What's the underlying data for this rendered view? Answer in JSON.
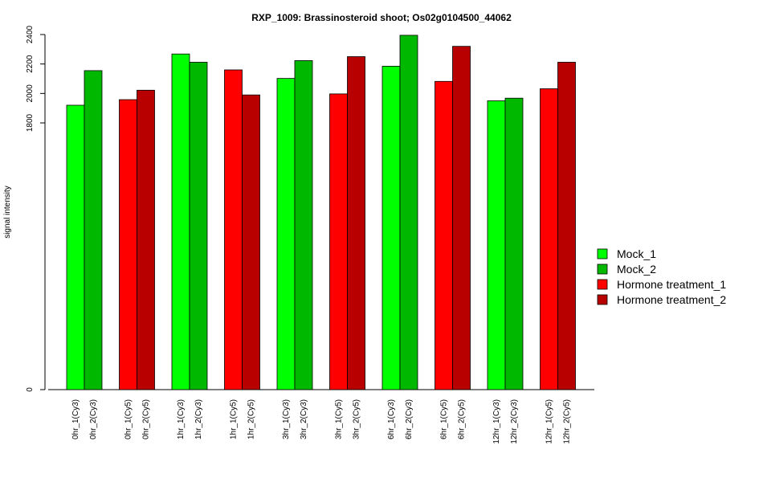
{
  "chart_data": {
    "type": "bar",
    "title": "RXP_1009: Brassinosteroid shoot; Os02g0104500_44062",
    "xlabel": "",
    "ylabel": "signal intensity",
    "y_ticks": [
      "0",
      "1800",
      "2000",
      "2200",
      "2400"
    ],
    "y_tick_values": [
      0,
      1800,
      2000,
      2200,
      2400
    ],
    "scale_note": "y axis is broken: 0 at bottom, 1800-2400 linear span near top",
    "legend_placement": "right",
    "grid": false,
    "categories": [
      "0hr_1(Cy3)",
      "0hr_2(Cy3)",
      "0hr_1(Cy5)",
      "0hr_2(Cy5)",
      "1hr_1(Cy3)",
      "1hr_2(Cy3)",
      "1hr_1(Cy5)",
      "1hr_2(Cy5)",
      "3hr_1(Cy3)",
      "3hr_2(Cy3)",
      "3hr_1(Cy5)",
      "3hr_2(Cy5)",
      "6hr_1(Cy3)",
      "6hr_2(Cy3)",
      "6hr_1(Cy5)",
      "6hr_2(Cy5)",
      "12hr_1(Cy3)",
      "12hr_2(Cy3)",
      "12hr_1(Cy5)",
      "12hr_2(Cy5)"
    ],
    "values": [
      1920,
      2155,
      1958,
      2022,
      2268,
      2212,
      2160,
      1990,
      2102,
      2223,
      1997,
      2250,
      2185,
      2395,
      2082,
      2320,
      1950,
      1968,
      2032,
      2212
    ],
    "bar_series_index": [
      0,
      1,
      2,
      3,
      0,
      1,
      2,
      3,
      0,
      1,
      2,
      3,
      0,
      1,
      2,
      3,
      0,
      1,
      2,
      3
    ],
    "series": [
      {
        "name": "Mock_1",
        "color": "#00ff00"
      },
      {
        "name": "Mock_2",
        "color": "#00b800"
      },
      {
        "name": "Hormone treatment_1",
        "color": "#ff0000"
      },
      {
        "name": "Hormone treatment_2",
        "color": "#b80000"
      }
    ]
  }
}
